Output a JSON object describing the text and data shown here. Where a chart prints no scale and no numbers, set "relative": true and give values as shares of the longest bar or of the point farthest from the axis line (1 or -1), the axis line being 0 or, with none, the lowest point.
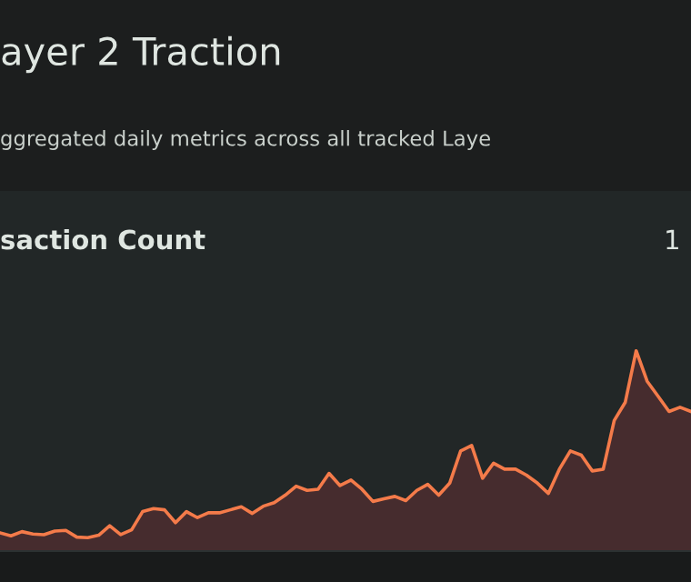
{
  "chart_data": {
    "type": "area",
    "title": "ayer 2 Traction",
    "subtitle": "ggregated daily metrics across all tracked Laye",
    "annotations": [
      "saction Count",
      "1"
    ],
    "relative": true,
    "categories": [
      null,
      null,
      null,
      null,
      null,
      null,
      null,
      null,
      null,
      null,
      null,
      null,
      null,
      null,
      null,
      null,
      null,
      null,
      null,
      null,
      null,
      null,
      null,
      null,
      null,
      null,
      null,
      null,
      null,
      null,
      null,
      null,
      null,
      null,
      null,
      null,
      null,
      null,
      null,
      null,
      null,
      null,
      null,
      null,
      null,
      null,
      null,
      null,
      null,
      null,
      null,
      null,
      null,
      null,
      null,
      null,
      null,
      null,
      null,
      null,
      null,
      null,
      null,
      null
    ],
    "series": [
      {
        "color": "#f47b4a",
        "values": [
          0.091,
          0.076,
          0.097,
          0.085,
          0.082,
          0.1,
          0.103,
          0.07,
          0.067,
          0.079,
          0.127,
          0.082,
          0.106,
          0.197,
          0.212,
          0.206,
          0.142,
          0.197,
          0.167,
          0.191,
          0.191,
          0.206,
          0.221,
          0.188,
          0.224,
          0.242,
          0.279,
          0.324,
          0.303,
          0.309,
          0.388,
          0.327,
          0.355,
          0.309,
          0.248,
          0.261,
          0.273,
          0.252,
          0.303,
          0.333,
          0.279,
          0.339,
          0.5,
          0.527,
          0.364,
          0.439,
          0.409,
          0.409,
          0.379,
          0.339,
          0.288,
          0.409,
          0.5,
          0.479,
          0.4,
          0.409,
          0.652,
          0.742,
          1,
          0.848,
          0.773,
          0.697,
          0.718,
          0.697
        ]
      }
    ]
  }
}
